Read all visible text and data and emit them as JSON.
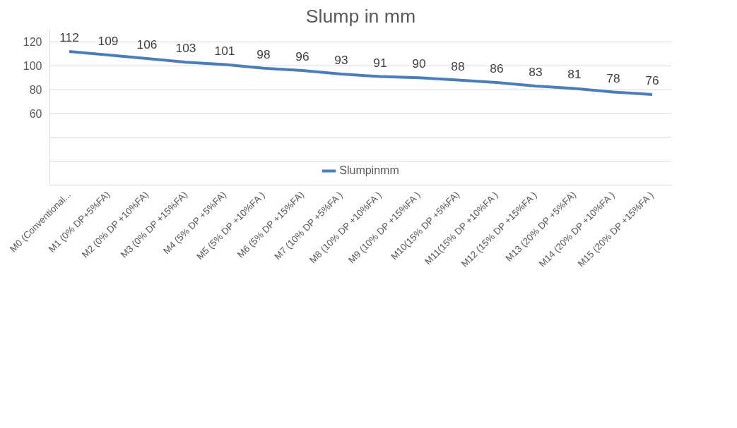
{
  "chart_data": {
    "type": "line",
    "title": "Slump in mm",
    "categories": [
      "M0 (Conventional...",
      "M1 (0% DP+5%FA)",
      "M2 (0% DP +10%FA)",
      "M3 (0% DP +15%FA)",
      "M4 (5% DP +5%FA)",
      "M5 (5% DP +10%FA )",
      "M6 (5% DP +15%FA)",
      "M7 (10% DP +5%FA )",
      "M8 (10% DP +10%FA )",
      "M9 (10% DP +15%FA )",
      "M10(15% DP +5%FA)",
      "M11(15% DP +10%FA )",
      "M12 (15% DP +15%FA )",
      "M13 (20% DP +5%FA)",
      "M14 (20% DP +10%FA )",
      "M15 (20% DP +15%FA )"
    ],
    "series": [
      {
        "name": "Slumpinmm",
        "color": "#4a7ebb",
        "values": [
          112,
          109,
          106,
          103,
          101,
          98,
          96,
          93,
          91,
          90,
          88,
          86,
          83,
          81,
          78,
          76
        ]
      }
    ],
    "ylim": [
      0,
      130
    ],
    "yticks": [
      {
        "value": 0,
        "label": null
      },
      {
        "value": 20,
        "label": null
      },
      {
        "value": 40,
        "label": null
      },
      60,
      80,
      100,
      120
    ],
    "grid": "y",
    "legend": "bottom",
    "data_labels": true,
    "marker": "none",
    "line_style": "solid"
  }
}
